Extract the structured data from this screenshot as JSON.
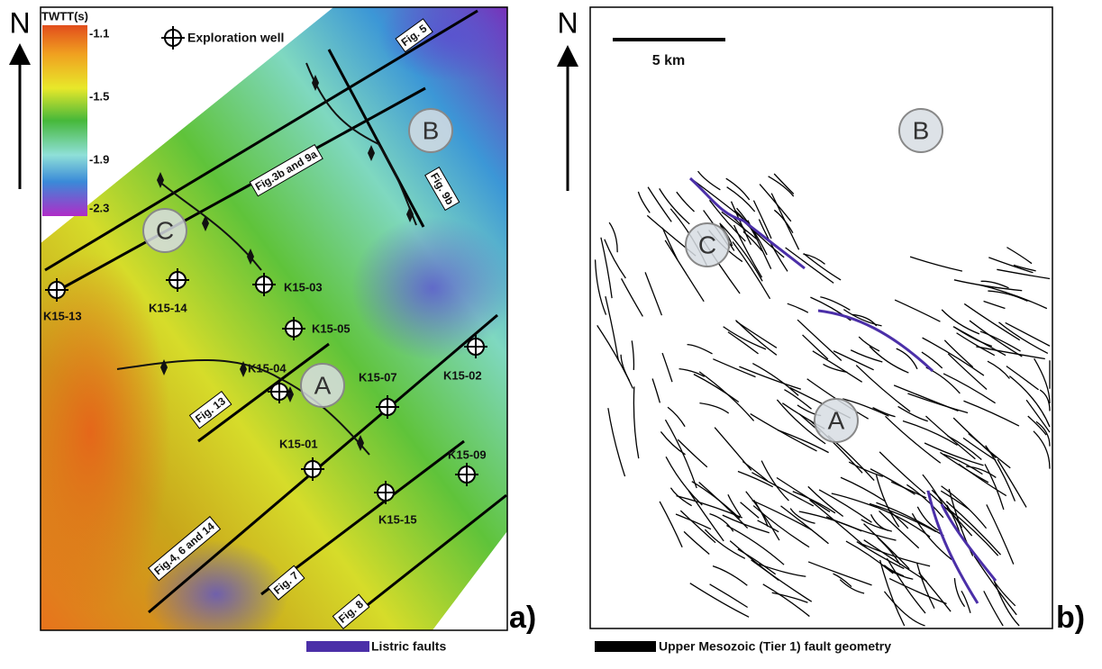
{
  "panel_a": {
    "label": "a)",
    "north": "N",
    "colorbar": {
      "title": "TWTT(s)",
      "ticks": [
        "-1.1",
        "-1.5",
        "-1.9",
        "-2.3"
      ]
    },
    "legend_well": "Exploration well",
    "zones": [
      "A",
      "B",
      "C"
    ],
    "wells": [
      "K15-13",
      "K15-14",
      "K15-03",
      "K15-05",
      "K15-04",
      "K15-07",
      "K15-02",
      "K15-01",
      "K15-09",
      "K15-15"
    ],
    "sections": [
      "Fig. 5",
      "Fig.3b and 9a",
      "Fig. 9b",
      "Fig. 13",
      "Fig.4, 6 and 14",
      "Fig. 7",
      "Fig. 8"
    ]
  },
  "panel_b": {
    "label": "b)",
    "north": "N",
    "scale": "5 km",
    "zones": [
      "A",
      "B",
      "C"
    ]
  },
  "legend": {
    "listric": "Listric faults",
    "tier1": "Upper Mesozoic (Tier 1) fault geometry"
  }
}
